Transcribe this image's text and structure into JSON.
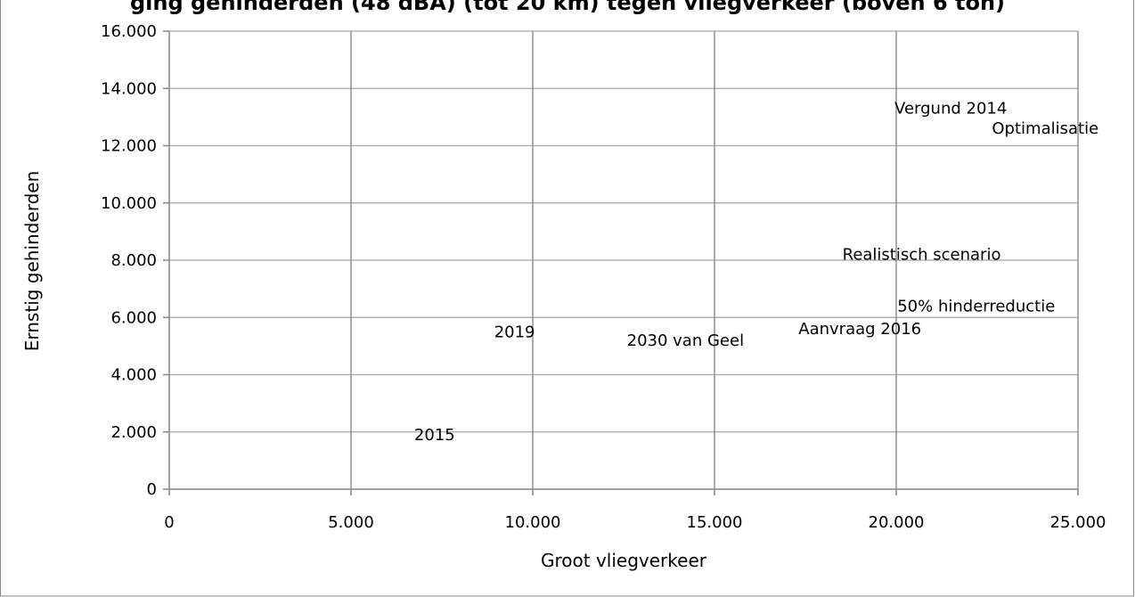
{
  "chart_data": {
    "type": "scatter",
    "title": "ging gehinderden (48 dBA) (tot 20 km) tegen vliegverkeer (boven 6 ton)",
    "xlabel": "Groot vliegverkeer",
    "ylabel": "Ernstig gehinderden",
    "xlim": [
      0,
      25000
    ],
    "ylim": [
      0,
      16000
    ],
    "x_ticks": [
      0,
      5000,
      10000,
      15000,
      20000,
      25000
    ],
    "y_ticks": [
      0,
      2000,
      4000,
      6000,
      8000,
      10000,
      12000,
      14000,
      16000
    ],
    "x_tick_labels": [
      "0",
      "5.000",
      "10.000",
      "15.000",
      "20.000",
      "25.000"
    ],
    "y_tick_labels": [
      "0",
      "2.000",
      "4.000",
      "6.000",
      "8.000",
      "10.000",
      "12.000",
      "14.000",
      "16.000"
    ],
    "grid": {
      "horizontal": true,
      "vertical": true
    },
    "points": [
      {
        "label": "2015",
        "x": 7300,
        "y": 1900
      },
      {
        "label": "2019",
        "x": 9500,
        "y": 5500
      },
      {
        "label": "2030 van Geel",
        "x": 14200,
        "y": 5200
      },
      {
        "label": "Aanvraag 2016",
        "x": 19000,
        "y": 5600
      },
      {
        "label": "50% hinderreductie",
        "x": 22200,
        "y": 6400
      },
      {
        "label": "Realistisch scenario",
        "x": 20700,
        "y": 8200
      },
      {
        "label": "Vergund 2014",
        "x": 21500,
        "y": 13300
      },
      {
        "label": "Optimalisatie",
        "x": 24100,
        "y": 12600
      }
    ]
  }
}
